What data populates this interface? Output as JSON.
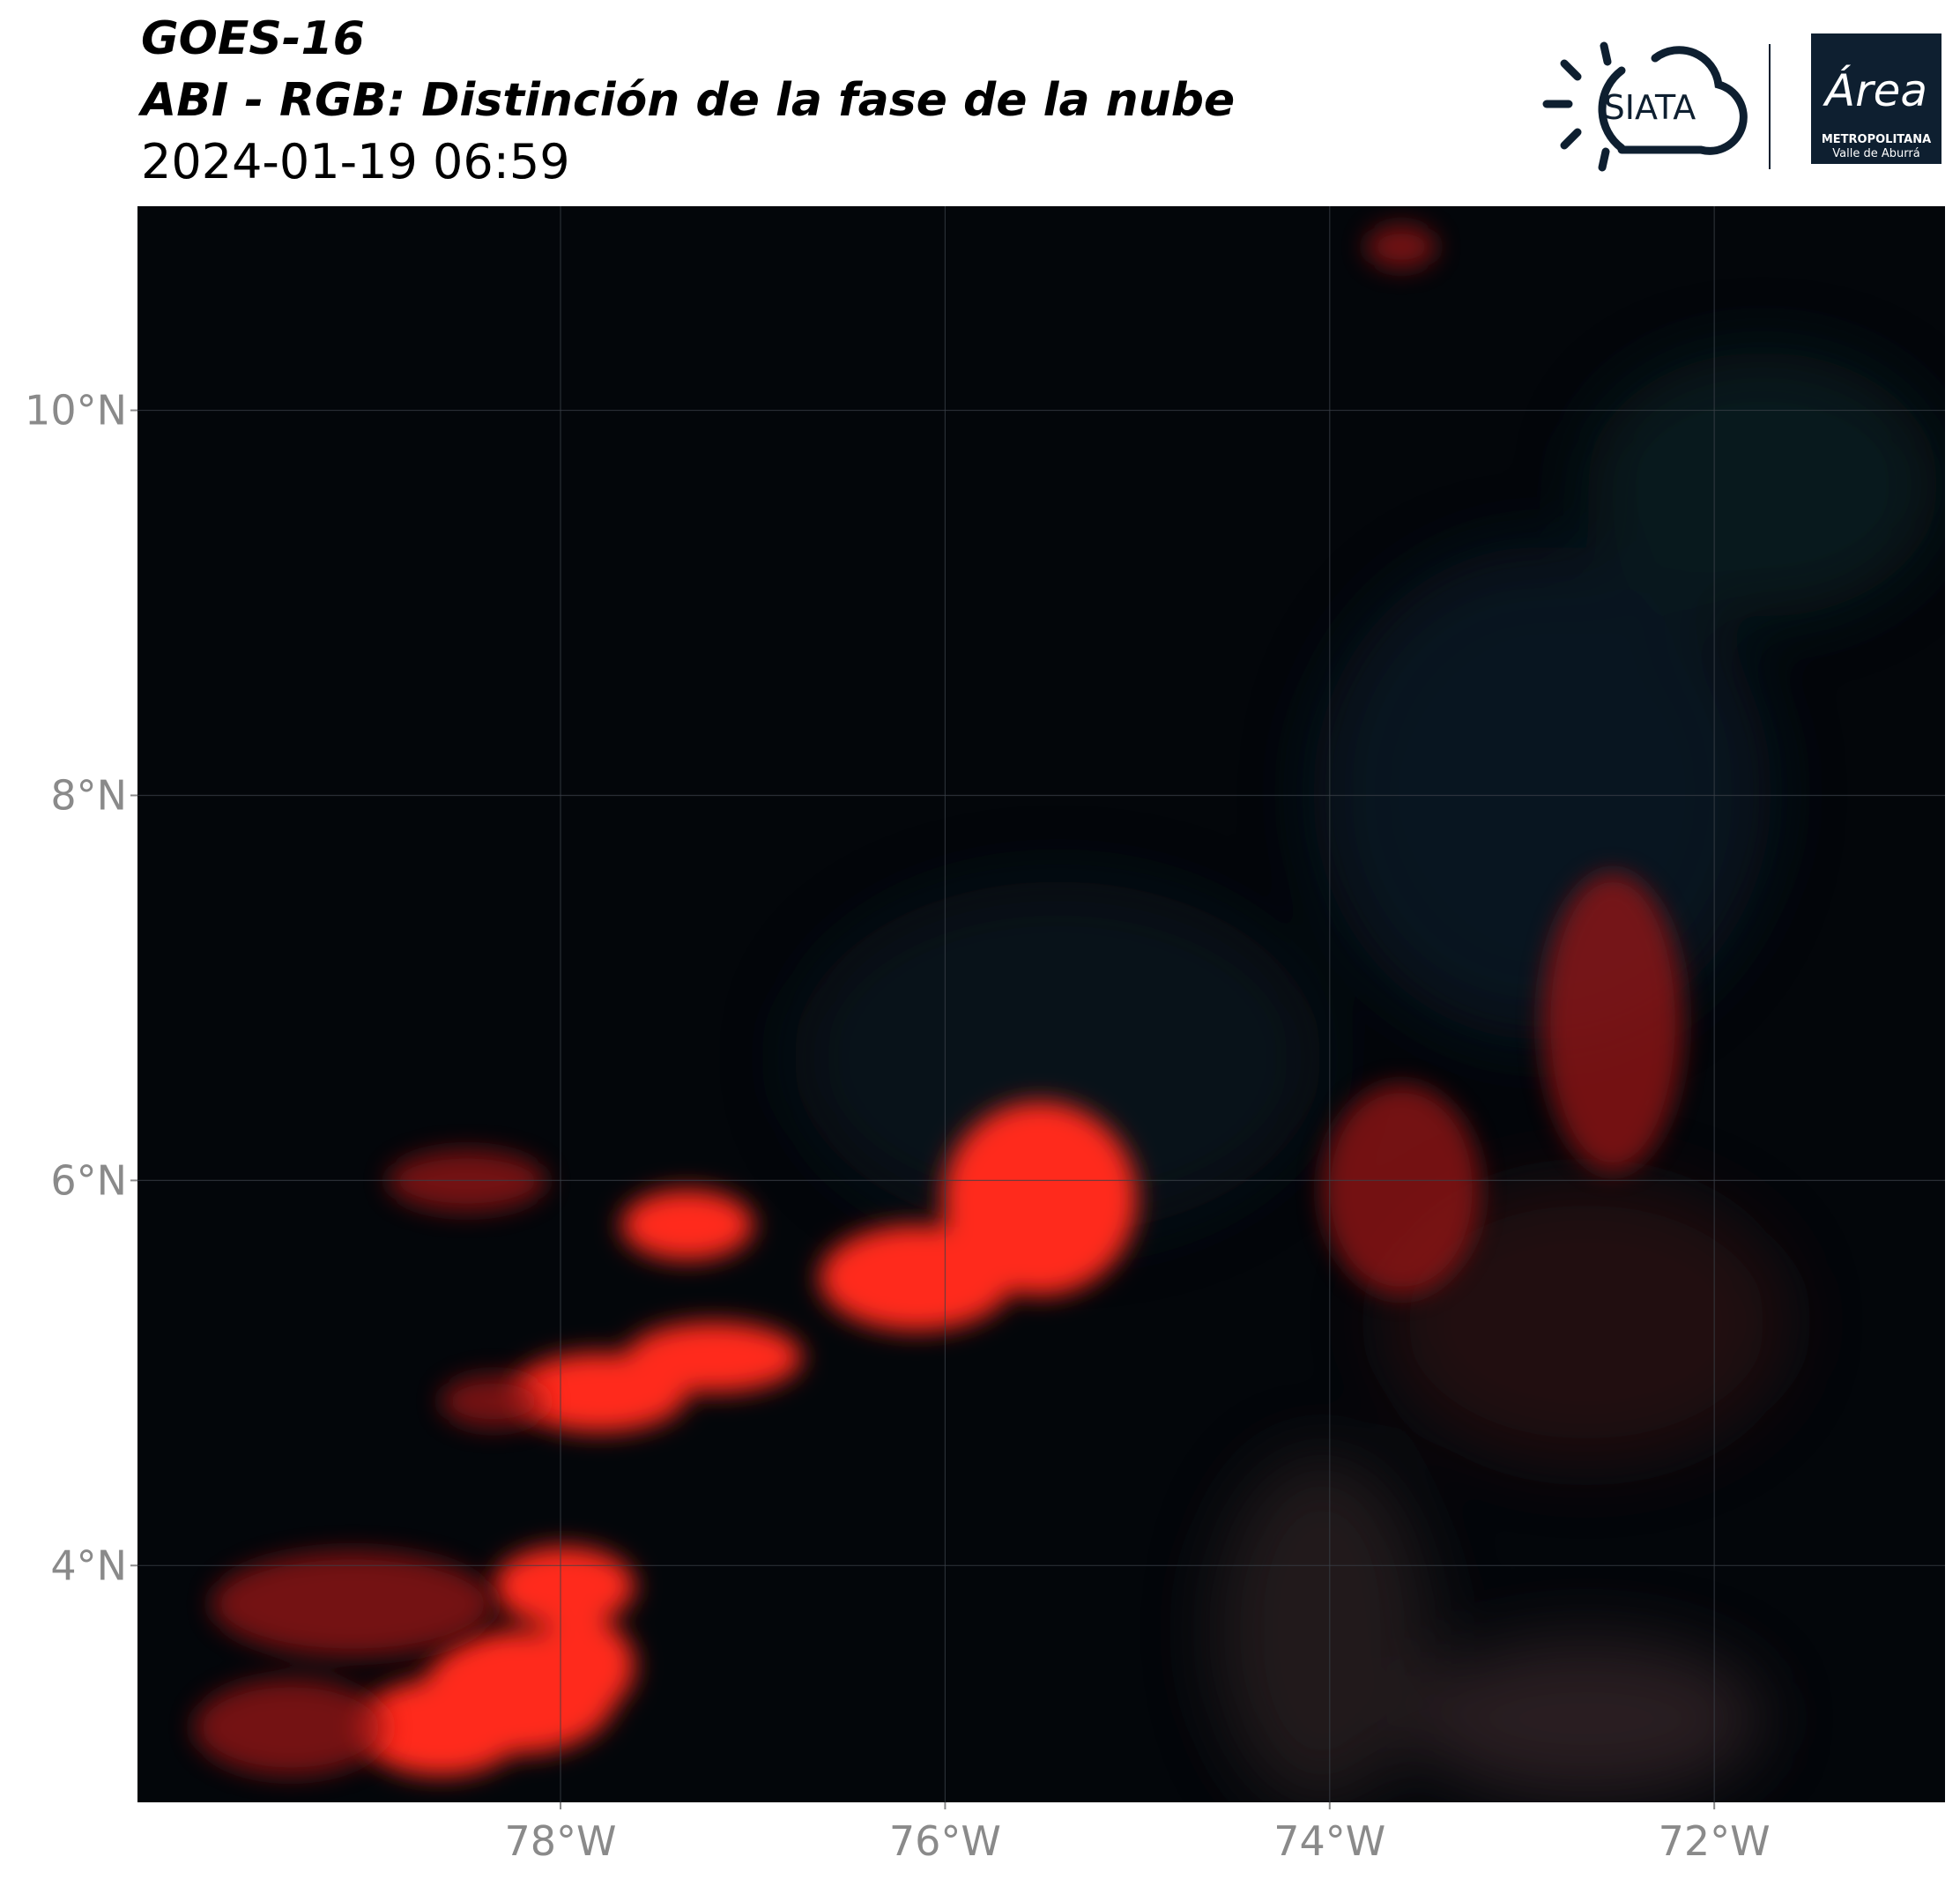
{
  "header": {
    "title": "GOES-16",
    "subtitle": "ABI - RGB: Distinción de la fase de la nube",
    "datetime": "2024-01-19 06:59"
  },
  "logos": {
    "siata": "SIATA",
    "area": "Área",
    "area_line1": "METROPOLITANA",
    "area_line2": "Valle de Aburrá"
  },
  "map": {
    "xlim": [
      -80.2,
      -70.8
    ],
    "ylim": [
      2.77,
      11.06
    ],
    "xticks": [
      {
        "value": -78,
        "label": "78°W"
      },
      {
        "value": -76,
        "label": "76°W"
      },
      {
        "value": -74,
        "label": "74°W"
      },
      {
        "value": -72,
        "label": "72°W"
      }
    ],
    "yticks": [
      {
        "value": 4,
        "label": "4°N"
      },
      {
        "value": 6,
        "label": "6°N"
      },
      {
        "value": 8,
        "label": "8°N"
      },
      {
        "value": 10,
        "label": "10°N"
      }
    ],
    "grid": true
  }
}
